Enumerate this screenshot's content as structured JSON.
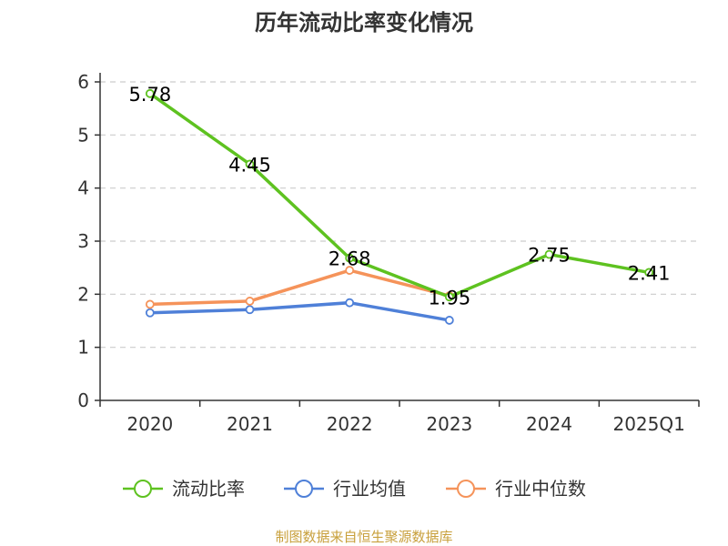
{
  "chart_data": {
    "type": "line",
    "title": "历年流动比率变化情况",
    "categories": [
      "2020",
      "2021",
      "2022",
      "2023",
      "2024",
      "2025Q1"
    ],
    "ylim": [
      0,
      6
    ],
    "yticks": [
      0,
      1,
      2,
      3,
      4,
      5,
      6
    ],
    "grid": true,
    "legend_position": "bottom",
    "series": [
      {
        "name": "流动比率",
        "color": "#5ec220",
        "values": [
          5.78,
          4.45,
          2.68,
          1.95,
          2.75,
          2.41
        ],
        "labels": [
          "5.78",
          "4.45",
          "2.68",
          "1.95",
          "2.75",
          "2.41"
        ]
      },
      {
        "name": "行业均值",
        "color": "#4f80d8",
        "values": [
          1.65,
          1.71,
          1.84,
          1.51,
          null,
          null
        ]
      },
      {
        "name": "行业中位数",
        "color": "#f5935a",
        "values": [
          1.81,
          1.87,
          2.45,
          1.97,
          null,
          null
        ]
      }
    ],
    "source": "制图数据来自恒生聚源数据库"
  }
}
